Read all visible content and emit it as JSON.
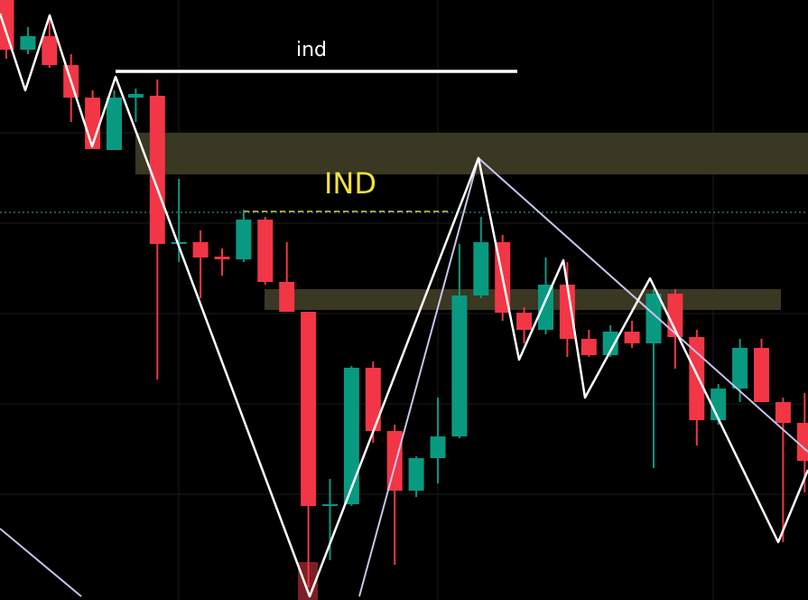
{
  "chart_data": {
    "type": "candlestick",
    "up_color": "#089981",
    "down_color": "#f23645",
    "ylim": [
      0,
      664
    ],
    "labels": {
      "line": "ind",
      "zone": "IND"
    },
    "candles": [
      {
        "open": 664,
        "high": 664,
        "low": 599,
        "close": 609
      },
      {
        "open": 609,
        "high": 634,
        "low": 604,
        "close": 624
      },
      {
        "open": 624,
        "high": 644,
        "low": 589,
        "close": 592
      },
      {
        "open": 592,
        "high": 604,
        "low": 529,
        "close": 556
      },
      {
        "open": 556,
        "high": 564,
        "low": 499,
        "close": 499
      },
      {
        "open": 498,
        "high": 564,
        "low": 498,
        "close": 556
      },
      {
        "open": 556,
        "high": 566,
        "low": 529,
        "close": 560
      },
      {
        "open": 558,
        "high": 576,
        "low": 244,
        "close": 394
      },
      {
        "open": 394,
        "high": 466,
        "low": 374,
        "close": 396
      },
      {
        "open": 396,
        "high": 409,
        "low": 334,
        "close": 379
      },
      {
        "open": 380,
        "high": 389,
        "low": 359,
        "close": 377
      },
      {
        "open": 377,
        "high": 432,
        "low": 374,
        "close": 421
      },
      {
        "open": 421,
        "high": 424,
        "low": 349,
        "close": 352
      },
      {
        "open": 352,
        "high": 396,
        "low": 319,
        "close": 319
      },
      {
        "open": 319,
        "high": 319,
        "low": 14,
        "close": 104
      },
      {
        "open": 104,
        "high": 134,
        "low": 44,
        "close": 106
      },
      {
        "open": 106,
        "high": 259,
        "low": 104,
        "close": 257
      },
      {
        "open": 257,
        "high": 264,
        "low": 174,
        "close": 187
      },
      {
        "open": 187,
        "high": 194,
        "low": 39,
        "close": 121
      },
      {
        "open": 121,
        "high": 159,
        "low": 114,
        "close": 157
      },
      {
        "open": 157,
        "high": 224,
        "low": 129,
        "close": 181
      },
      {
        "open": 181,
        "high": 394,
        "low": 179,
        "close": 337
      },
      {
        "open": 337,
        "high": 424,
        "low": 334,
        "close": 396
      },
      {
        "open": 396,
        "high": 404,
        "low": 309,
        "close": 318
      },
      {
        "open": 318,
        "high": 324,
        "low": 284,
        "close": 299
      },
      {
        "open": 299,
        "high": 379,
        "low": 294,
        "close": 349
      },
      {
        "open": 349,
        "high": 374,
        "low": 269,
        "close": 289
      },
      {
        "open": 289,
        "high": 299,
        "low": 269,
        "close": 271
      },
      {
        "open": 271,
        "high": 304,
        "low": 269,
        "close": 297
      },
      {
        "open": 297,
        "high": 309,
        "low": 279,
        "close": 284
      },
      {
        "open": 284,
        "high": 344,
        "low": 146,
        "close": 339
      },
      {
        "open": 339,
        "high": 344,
        "low": 256,
        "close": 291
      },
      {
        "open": 291,
        "high": 299,
        "low": 171,
        "close": 199
      },
      {
        "open": 199,
        "high": 239,
        "low": 194,
        "close": 234
      },
      {
        "open": 234,
        "high": 289,
        "low": 219,
        "close": 279
      },
      {
        "open": 279,
        "high": 289,
        "low": 219,
        "close": 219
      },
      {
        "open": 219,
        "high": 224,
        "low": 64,
        "close": 196
      },
      {
        "open": 196,
        "high": 229,
        "low": 119,
        "close": 154
      }
    ]
  }
}
